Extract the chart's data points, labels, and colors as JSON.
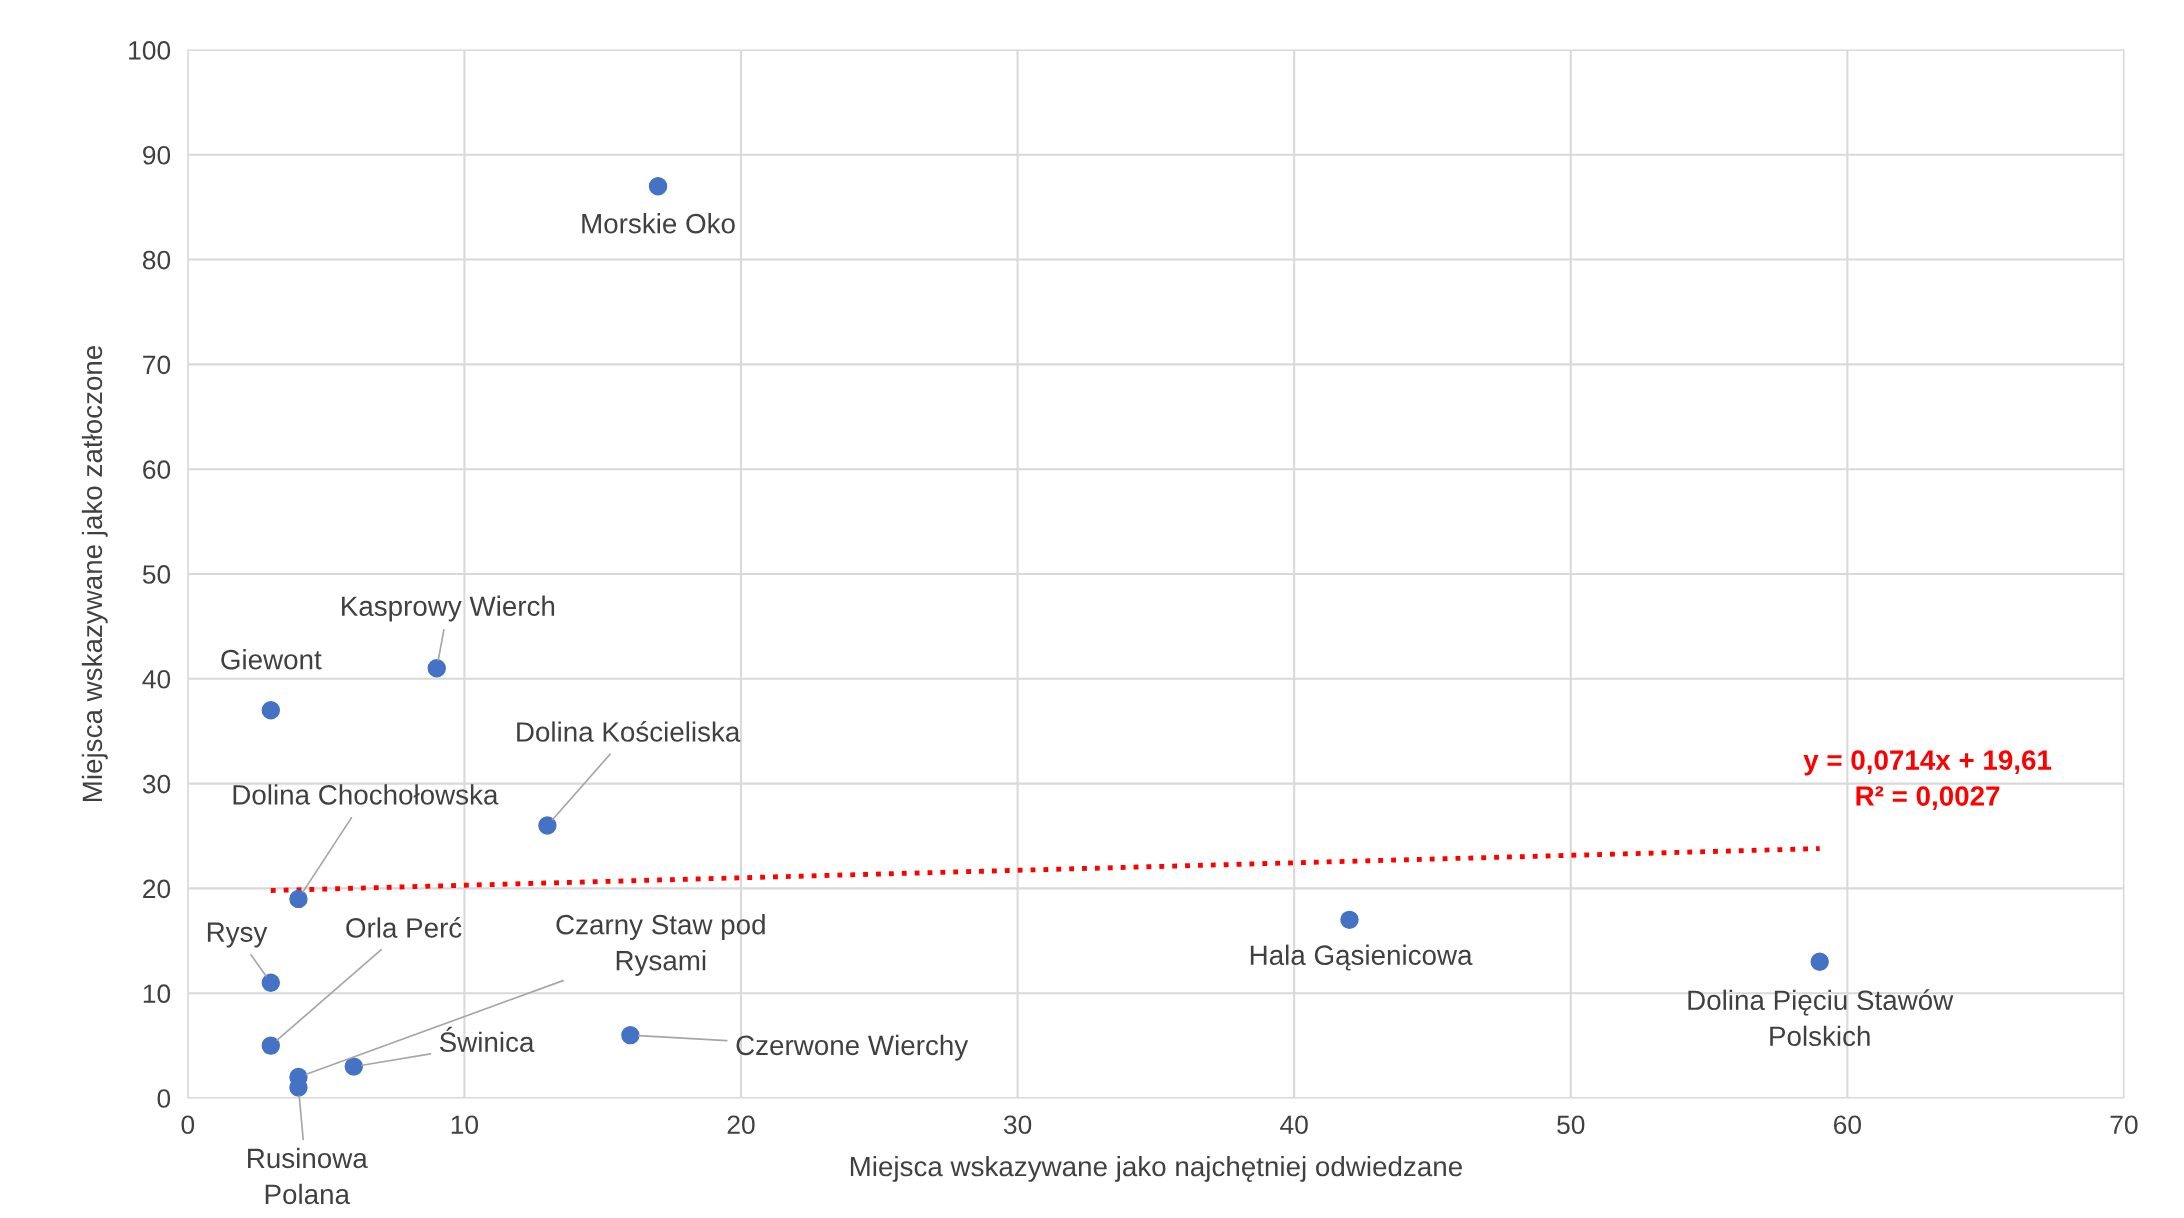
{
  "chart_data": {
    "type": "scatter",
    "xlabel": "Miejsca wskazywane jako najchętniej odwiedzane",
    "ylabel": "Miejsca wskazywane jako zatłoczone",
    "xlim": [
      0,
      70
    ],
    "ylim": [
      0,
      100
    ],
    "xticks": [
      0,
      10,
      20,
      30,
      40,
      50,
      60,
      70
    ],
    "yticks": [
      0,
      10,
      20,
      30,
      40,
      50,
      60,
      70,
      80,
      90,
      100
    ],
    "grid": true,
    "series": [
      {
        "marker": "circle",
        "color": "#4472c4",
        "x": [
          17,
          9,
          3,
          13,
          4,
          42,
          59,
          3,
          3,
          4,
          4,
          6,
          16
        ],
        "values": [
          87,
          41,
          37,
          26,
          19,
          17,
          13,
          11,
          5,
          2,
          1,
          3,
          6
        ]
      },
      {
        "type": "line",
        "color": "#ff0000",
        "line_style": "dotted",
        "x": [
          3,
          59
        ],
        "values": [
          19.8,
          23.8
        ]
      }
    ],
    "annotations": [
      {
        "text": "Morskie Oko",
        "x": 17,
        "y": 87
      },
      {
        "text": "Kasprowy Wierch",
        "x": 9,
        "y": 41
      },
      {
        "text": "Giewont",
        "x": 3,
        "y": 37
      },
      {
        "text": "Dolina Kościeliska",
        "x": 13,
        "y": 26
      },
      {
        "text": "Dolina Chochołowska",
        "x": 4,
        "y": 19
      },
      {
        "text": "Hala Gąsienicowa",
        "x": 42,
        "y": 17
      },
      {
        "text": "Dolina Pięciu Stawów\nPolskich",
        "x": 59,
        "y": 13
      },
      {
        "text": "Rysy",
        "x": 3,
        "y": 11
      },
      {
        "text": "Orla Perć",
        "x": 3,
        "y": 5
      },
      {
        "text": "Czarny Staw pod\nRysami",
        "x": 4,
        "y": 2
      },
      {
        "text": "Rusinowa\nPolana",
        "x": 4,
        "y": 1
      },
      {
        "text": "Świnica",
        "x": 6,
        "y": 3
      },
      {
        "text": "Czerwone Wierchy",
        "x": 16,
        "y": 6
      },
      {
        "text": "y = 0,0714x + 19,61\nR² = 0,0027",
        "x": 59,
        "y": 23.8
      }
    ]
  }
}
